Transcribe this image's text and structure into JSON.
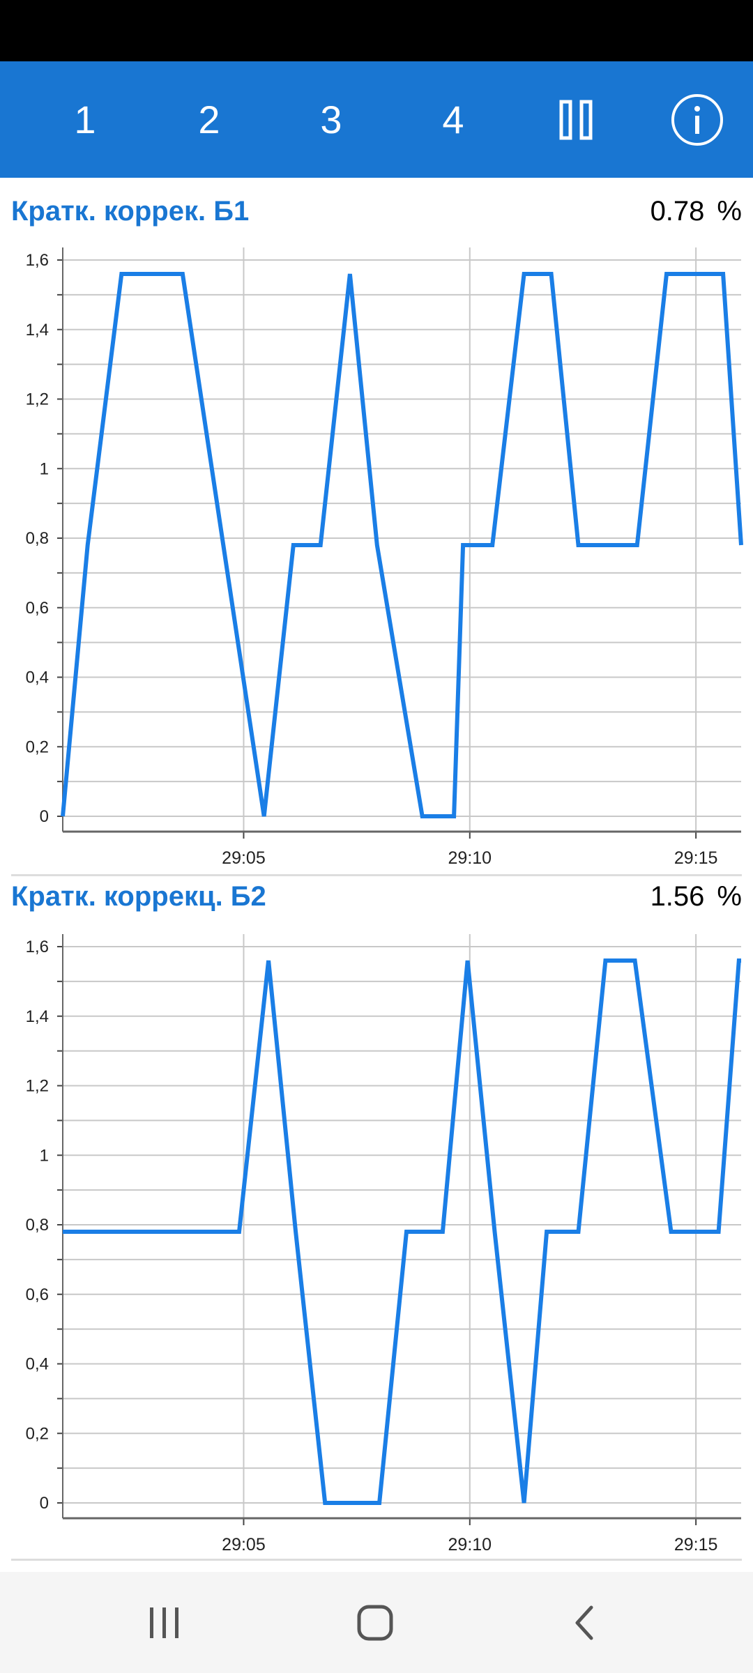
{
  "toolbar": {
    "tabs": [
      {
        "label": "1"
      },
      {
        "label": "2"
      },
      {
        "label": "3"
      },
      {
        "label": "4"
      }
    ],
    "pause_icon": "pause-icon",
    "info_icon": "info-icon"
  },
  "colors": {
    "accent": "#1976d2",
    "line": "#1a7ee6",
    "grid": "#c8c8c8"
  },
  "panels": [
    {
      "title": "Кратк. коррек. Б1",
      "value": "0.78",
      "unit": "%"
    },
    {
      "title": "Кратк. коррекц. Б2",
      "value": "1.56",
      "unit": "%"
    }
  ],
  "chart_data": [
    {
      "type": "line",
      "title": "Кратк. коррек. Б1",
      "xlabel": "",
      "ylabel": "",
      "x_unit": "seconds",
      "xlim": [
        1741,
        1756
      ],
      "ylim": [
        0,
        1.6
      ],
      "y_ticks": [
        "0",
        "0,2",
        "0,4",
        "0,6",
        "0,8",
        "1",
        "1,2",
        "1,4",
        "1,6"
      ],
      "x_ticks": [
        {
          "value": 1745,
          "label": "29:05"
        },
        {
          "value": 1750,
          "label": "29:10"
        },
        {
          "value": 1755,
          "label": "29:15"
        }
      ],
      "grid": true,
      "series": [
        {
          "x": [
            1741.0,
            1741.55,
            1742.3,
            1743.65,
            1744.55,
            1745.45,
            1746.1,
            1746.7,
            1747.35,
            1747.95,
            1748.95,
            1749.65,
            1749.85,
            1750.5,
            1751.2,
            1751.8,
            1752.4,
            1753.7,
            1754.35,
            1755.6,
            1756.0
          ],
          "y": [
            0,
            0.78,
            1.56,
            1.56,
            0.78,
            0,
            0.78,
            0.78,
            1.56,
            0.78,
            0,
            0,
            0.78,
            0.78,
            1.56,
            1.56,
            0.78,
            0.78,
            1.56,
            1.56,
            0.78
          ]
        }
      ]
    },
    {
      "type": "line",
      "title": "Кратк. коррекц. Б2",
      "xlabel": "",
      "ylabel": "",
      "x_unit": "seconds",
      "xlim": [
        1741,
        1756
      ],
      "ylim": [
        0,
        1.6
      ],
      "y_ticks": [
        "0",
        "0,2",
        "0,4",
        "0,6",
        "0,8",
        "1",
        "1,2",
        "1,4",
        "1,6"
      ],
      "x_ticks": [
        {
          "value": 1745,
          "label": "29:05"
        },
        {
          "value": 1750,
          "label": "29:10"
        },
        {
          "value": 1755,
          "label": "29:15"
        }
      ],
      "grid": true,
      "series": [
        {
          "x": [
            1741.0,
            1744.9,
            1745.55,
            1746.15,
            1746.8,
            1748.0,
            1748.6,
            1749.4,
            1749.95,
            1750.55,
            1751.2,
            1751.7,
            1752.4,
            1753.0,
            1753.65,
            1754.45,
            1755.5,
            1755.95,
            1756.0
          ],
          "y": [
            0.78,
            0.78,
            1.56,
            0.78,
            0,
            0,
            0.78,
            0.78,
            1.56,
            0.78,
            0,
            0.78,
            0.78,
            1.56,
            1.56,
            0.78,
            0.78,
            1.56,
            1.56
          ]
        }
      ]
    }
  ],
  "navbar": {
    "recent_icon": "recent-apps-icon",
    "home_icon": "home-icon",
    "back_icon": "back-icon"
  }
}
